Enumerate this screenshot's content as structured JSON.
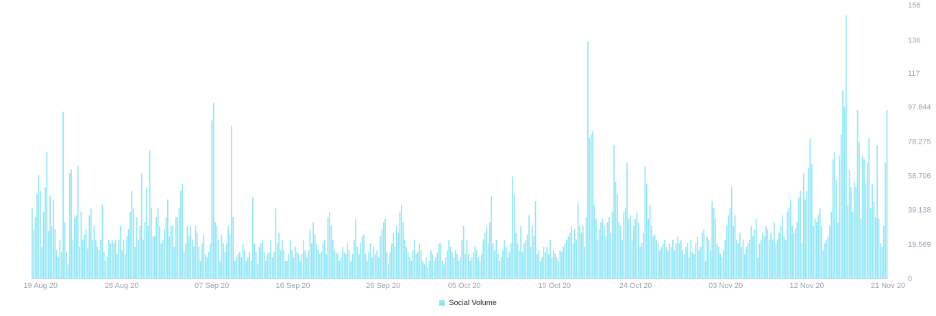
{
  "chart_data": {
    "type": "bar",
    "series_name": "Social Volume",
    "color": "#8ee6f7",
    "x_start": "2020-08-18",
    "x_end": "2020-11-21",
    "x_ticks": [
      "19 Aug 20",
      "28 Aug 20",
      "07 Sep 20",
      "16 Sep 20",
      "26 Sep 20",
      "05 Oct 20",
      "15 Oct 20",
      "24 Oct 20",
      "03 Nov 20",
      "12 Nov 20",
      "21 Nov 20"
    ],
    "y_ticks": [
      "0",
      "19.569",
      "39.138",
      "58.706",
      "78.275",
      "97.844",
      "117",
      "136",
      "156"
    ],
    "ylim": [
      0,
      156
    ],
    "grid": false,
    "legend_position": "bottom-center",
    "values": [
      40,
      28,
      35,
      48,
      59,
      50,
      18,
      38,
      52,
      72,
      27,
      47,
      30,
      45,
      28,
      16,
      12,
      22,
      15,
      95,
      32,
      15,
      8,
      60,
      62,
      22,
      35,
      36,
      64,
      18,
      38,
      22,
      25,
      28,
      17,
      36,
      40,
      22,
      30,
      22,
      18,
      16,
      22,
      42,
      15,
      10,
      12,
      22,
      20,
      22,
      20,
      22,
      14,
      22,
      30,
      16,
      22,
      14,
      24,
      28,
      38,
      50,
      40,
      18,
      35,
      22,
      30,
      60,
      22,
      32,
      52,
      30,
      73,
      40,
      24,
      24,
      35,
      40,
      30,
      20,
      22,
      28,
      35,
      45,
      24,
      30,
      30,
      18,
      35,
      35,
      40,
      50,
      54,
      15,
      20,
      30,
      24,
      30,
      22,
      18,
      30,
      26,
      18,
      10,
      20,
      25,
      14,
      12,
      15,
      20,
      90,
      100,
      32,
      30,
      22,
      10,
      25,
      20,
      15,
      20,
      30,
      25,
      87,
      35,
      10,
      12,
      14,
      15,
      12,
      20,
      16,
      10,
      12,
      15,
      10,
      46,
      20,
      15,
      8,
      18,
      20,
      22,
      15,
      10,
      14,
      15,
      22,
      12,
      15,
      40,
      20,
      26,
      16,
      22,
      16,
      10,
      10,
      14,
      22,
      16,
      12,
      18,
      15,
      14,
      10,
      14,
      22,
      16,
      12,
      16,
      28,
      20,
      32,
      25,
      20,
      16,
      14,
      15,
      20,
      22,
      14,
      35,
      38,
      30,
      22,
      16,
      15,
      14,
      10,
      12,
      18,
      15,
      14,
      20,
      16,
      10,
      14,
      22,
      34,
      18,
      14,
      20,
      24,
      25,
      14,
      10,
      15,
      20,
      12,
      18,
      14,
      16,
      12,
      24,
      28,
      32,
      34,
      15,
      8,
      15,
      20,
      26,
      18,
      30,
      26,
      38,
      42,
      32,
      22,
      18,
      15,
      12,
      10,
      16,
      22,
      14,
      15,
      20,
      16,
      10,
      8,
      12,
      6,
      10,
      16,
      14,
      10,
      12,
      15,
      20,
      20,
      10,
      8,
      12,
      16,
      22,
      18,
      15,
      12,
      16,
      14,
      10,
      12,
      22,
      30,
      14,
      22,
      14,
      10,
      12,
      15,
      18,
      16,
      12,
      10,
      14,
      22,
      26,
      30,
      20,
      32,
      47,
      20,
      16,
      22,
      14,
      10,
      12,
      16,
      22,
      18,
      12,
      15,
      20,
      58,
      48,
      26,
      20,
      16,
      30,
      15,
      20,
      22,
      25,
      36,
      18,
      30,
      24,
      44,
      14,
      16,
      10,
      12,
      18,
      15,
      18,
      14,
      22,
      12,
      16,
      14,
      12,
      10,
      16,
      15,
      18,
      20,
      22,
      24,
      26,
      30,
      20,
      28,
      22,
      43,
      30,
      26,
      30,
      18,
      35,
      135,
      80,
      82,
      84,
      42,
      34,
      22,
      28,
      32,
      34,
      30,
      24,
      32,
      35,
      26,
      38,
      76,
      55,
      48,
      32,
      30,
      22,
      38,
      40,
      66,
      34,
      36,
      22,
      30,
      34,
      38,
      32,
      18,
      20,
      26,
      64,
      54,
      34,
      42,
      30,
      24,
      25,
      22,
      20,
      16,
      18,
      20,
      22,
      18,
      16,
      20,
      18,
      22,
      16,
      20,
      24,
      20,
      22,
      16,
      14,
      18,
      20,
      12,
      22,
      15,
      14,
      20,
      24,
      16,
      18,
      26,
      28,
      10,
      24,
      22,
      16,
      44,
      40,
      34,
      20,
      18,
      14,
      12,
      16,
      22,
      30,
      36,
      40,
      52,
      30,
      36,
      22,
      20,
      26,
      18,
      22,
      14,
      18,
      20,
      22,
      30,
      24,
      28,
      34,
      12,
      20,
      22,
      26,
      24,
      30,
      28,
      22,
      26,
      22,
      32,
      20,
      22,
      26,
      30,
      36,
      24,
      22,
      38,
      40,
      45,
      30,
      26,
      28,
      32,
      46,
      50,
      20,
      60,
      45,
      50,
      63,
      80,
      65,
      30,
      34,
      32,
      36,
      40,
      30,
      16,
      20,
      22,
      24,
      30,
      38,
      68,
      72,
      56,
      32,
      70,
      82,
      107,
      98,
      150,
      42,
      62,
      52,
      38,
      55,
      52,
      96,
      78,
      34,
      70,
      68,
      54,
      66,
      80,
      40,
      54,
      44,
      35,
      76,
      34,
      20,
      18,
      30,
      66,
      96
    ]
  }
}
